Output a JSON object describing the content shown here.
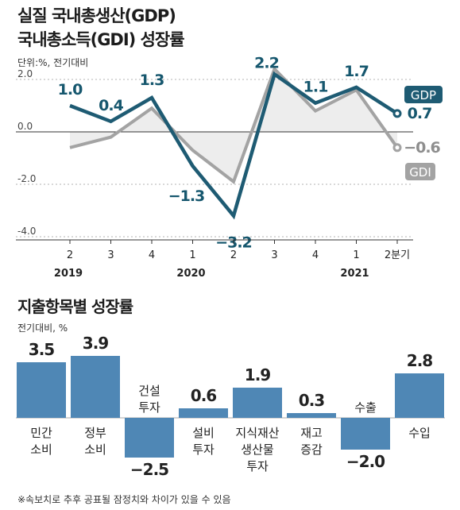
{
  "header": {
    "title_line1": "실질 국내총생산(GDP)",
    "title_line2": "국내총소득(GDI) 성장률",
    "unit": "단위:%, 전기대비"
  },
  "chart_data": [
    {
      "type": "line",
      "x": [
        "2",
        "3",
        "4",
        "1",
        "2",
        "3",
        "4",
        "1",
        "2분기"
      ],
      "year_labels": [
        {
          "label": "2019",
          "index": 0
        },
        {
          "label": "2020",
          "index": 3
        },
        {
          "label": "2021",
          "index": 7
        }
      ],
      "ylim": [
        -4.0,
        2.0
      ],
      "yticks": [
        "2.0",
        "0.0",
        "-2.0",
        "-4.0"
      ],
      "series": [
        {
          "name": "GDP",
          "color": "#1e5b73",
          "values": [
            1.0,
            0.4,
            1.3,
            -1.3,
            -3.2,
            2.2,
            1.1,
            1.7,
            0.7
          ],
          "labels": [
            "1.0",
            "0.4",
            "1.3",
            "−1.3",
            "−3.2",
            "2.2",
            "1.1",
            "1.7",
            "0.7"
          ]
        },
        {
          "name": "GDI",
          "color": "#a3a3a3",
          "values": [
            -0.6,
            -0.2,
            0.9,
            -0.7,
            -1.9,
            2.4,
            0.8,
            1.6,
            -0.6
          ],
          "last_label": "−0.6"
        }
      ]
    },
    {
      "type": "bar",
      "title": "지출항목별 성장률",
      "unit": "전기대비, %",
      "categories": [
        "민간\n소비",
        "정부\n소비",
        "건설\n투자",
        "설비\n투자",
        "지식재산\n생산물\n투자",
        "재고\n증감",
        "수출",
        "수입"
      ],
      "values": [
        3.5,
        3.9,
        -2.5,
        0.6,
        1.9,
        0.3,
        -2.0,
        2.8
      ],
      "value_labels": [
        "3.5",
        "3.9",
        "−2.5",
        "0.6",
        "1.9",
        "0.3",
        "−2.0",
        "2.8"
      ],
      "bar_color": "#4f87b5"
    }
  ],
  "footnote": "※속보치로 추후 공표될 잠정치와 차이가 있을 수 있음"
}
